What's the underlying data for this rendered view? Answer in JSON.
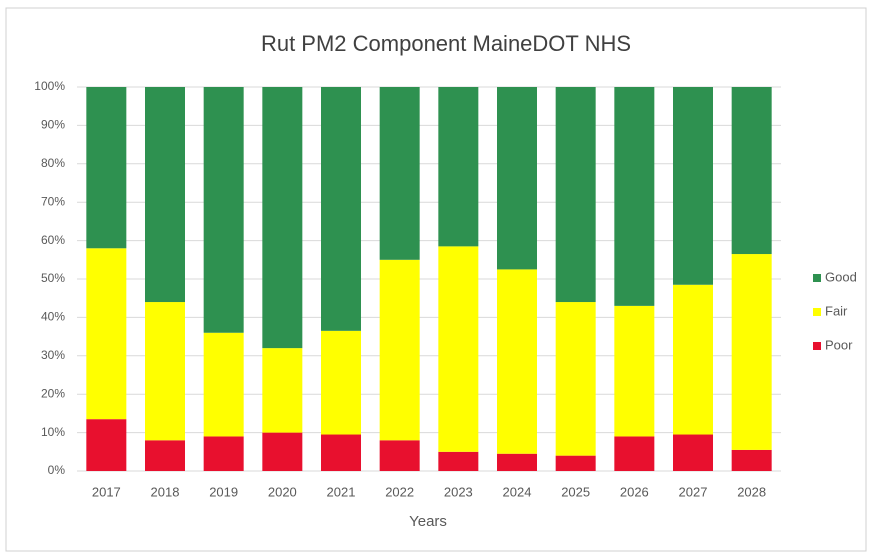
{
  "chart_data": {
    "type": "stacked_bar",
    "title": "Rut PM2 Component MaineDOT NHS",
    "x_label": "Years",
    "categories": [
      "2017",
      "2018",
      "2019",
      "2020",
      "2021",
      "2022",
      "2023",
      "2024",
      "2025",
      "2026",
      "2027",
      "2028"
    ],
    "series": [
      {
        "name": "Poor",
        "color": "#e8102e",
        "values": [
          13.5,
          8,
          9,
          10,
          9.5,
          8,
          5,
          4.5,
          4,
          9,
          9.5,
          5.5
        ]
      },
      {
        "name": "Fair",
        "color": "#ffff00",
        "values": [
          44.5,
          36,
          27,
          22,
          27,
          47,
          53.5,
          48,
          40,
          34,
          39,
          51
        ]
      },
      {
        "name": "Good",
        "color": "#2e9150",
        "values": [
          42,
          56,
          64,
          68,
          63.5,
          45,
          41.5,
          47.5,
          56,
          57,
          51.5,
          43.5
        ]
      }
    ],
    "ylim": [
      0,
      100
    ],
    "yticks": [
      {
        "value": 0,
        "label": "0%"
      },
      {
        "value": 10,
        "label": "10%"
      },
      {
        "value": 20,
        "label": "20%"
      },
      {
        "value": 30,
        "label": "30%"
      },
      {
        "value": 40,
        "label": "40%"
      },
      {
        "value": 50,
        "label": "50%"
      },
      {
        "value": 60,
        "label": "60%"
      },
      {
        "value": 70,
        "label": "70%"
      },
      {
        "value": 80,
        "label": "80%"
      },
      {
        "value": 90,
        "label": "90%"
      },
      {
        "value": 100,
        "label": "100%"
      }
    ],
    "grid": true,
    "legend": "right"
  }
}
